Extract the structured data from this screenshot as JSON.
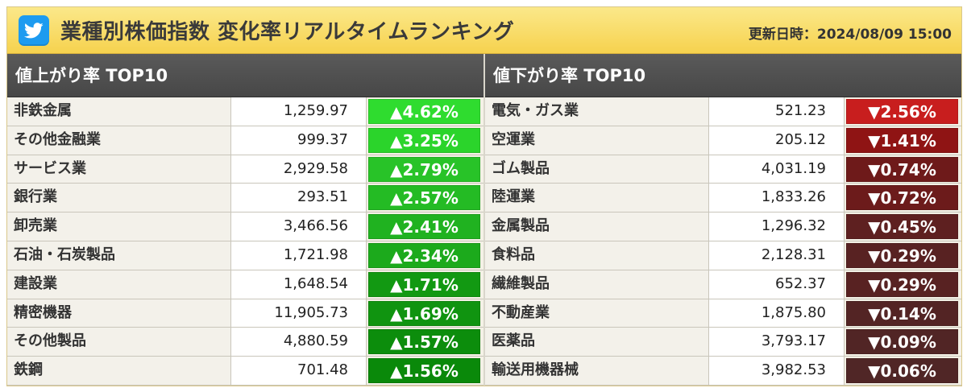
{
  "header": {
    "title": "業種別株価指数 変化率リアルタイムランキング",
    "updated": "更新日時：2024/08/09 15:00",
    "logo_icon": "twitter-bird-icon",
    "accent": "#f6d24e"
  },
  "gainers": {
    "title": "値上がり率 TOP10",
    "rows": [
      {
        "name": "非鉄金属",
        "price": "1,259.97",
        "rate": "▲4.62%",
        "color": "#2fdc2f"
      },
      {
        "name": "その他金融業",
        "price": "999.37",
        "rate": "▲3.25%",
        "color": "#2bd42b"
      },
      {
        "name": "サービス業",
        "price": "2,929.58",
        "rate": "▲2.79%",
        "color": "#28c328"
      },
      {
        "name": "銀行業",
        "price": "293.51",
        "rate": "▲2.57%",
        "color": "#24bb24"
      },
      {
        "name": "卸売業",
        "price": "3,466.56",
        "rate": "▲2.41%",
        "color": "#20b220"
      },
      {
        "name": "石油・石炭製品",
        "price": "1,721.98",
        "rate": "▲2.34%",
        "color": "#1caa1c"
      },
      {
        "name": "建設業",
        "price": "1,648.54",
        "rate": "▲1.71%",
        "color": "#129912"
      },
      {
        "name": "精密機器",
        "price": "11,905.73",
        "rate": "▲1.69%",
        "color": "#109410"
      },
      {
        "name": "その他製品",
        "price": "4,880.59",
        "rate": "▲1.57%",
        "color": "#0c8d0c"
      },
      {
        "name": "鉄鋼",
        "price": "701.48",
        "rate": "▲1.56%",
        "color": "#0a890a"
      }
    ]
  },
  "losers": {
    "title": "値下がり率 TOP10",
    "rows": [
      {
        "name": "電気・ガス業",
        "price": "521.23",
        "rate": "▼2.56%",
        "color": "#c81e1e"
      },
      {
        "name": "空運業",
        "price": "205.12",
        "rate": "▼1.41%",
        "color": "#8f1414"
      },
      {
        "name": "ゴム製品",
        "price": "4,031.19",
        "rate": "▼0.74%",
        "color": "#6e1a1a"
      },
      {
        "name": "陸運業",
        "price": "1,833.26",
        "rate": "▼0.72%",
        "color": "#6c1b1b"
      },
      {
        "name": "金属製品",
        "price": "1,296.32",
        "rate": "▼0.45%",
        "color": "#5e2020"
      },
      {
        "name": "食料品",
        "price": "2,128.31",
        "rate": "▼0.29%",
        "color": "#582222"
      },
      {
        "name": "繊維製品",
        "price": "652.37",
        "rate": "▼0.29%",
        "color": "#582222"
      },
      {
        "name": "不動産業",
        "price": "1,875.80",
        "rate": "▼0.14%",
        "color": "#532424"
      },
      {
        "name": "医薬品",
        "price": "3,793.17",
        "rate": "▼0.09%",
        "color": "#512525"
      },
      {
        "name": "輸送用機器械",
        "price": "3,982.53",
        "rate": "▼0.06%",
        "color": "#502626"
      }
    ]
  }
}
